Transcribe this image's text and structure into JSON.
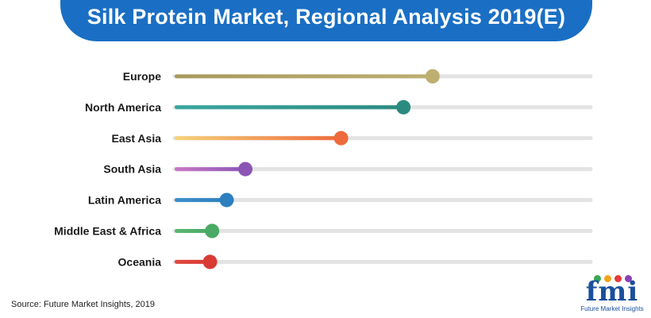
{
  "chart_data": {
    "type": "bar",
    "title": "Silk Protein Market, Regional Analysis 2019(E)",
    "categories": [
      "Europe",
      "North America",
      "East Asia",
      "South Asia",
      "Latin America",
      "Middle East & Africa",
      "Oceania"
    ],
    "values": [
      62,
      55,
      40,
      17,
      12.5,
      9,
      8.5
    ],
    "xlim": [
      0,
      100
    ],
    "grid": false,
    "colors": {
      "Europe": [
        "#a79a5e",
        "#bdaf70"
      ],
      "North America": [
        "#3aa6a0",
        "#2b8b80"
      ],
      "East Asia": [
        "#f7d27a",
        "#ee6a3c"
      ],
      "South Asia": [
        "#c978c4",
        "#8b55b5"
      ],
      "Latin America": [
        "#3c8fc8",
        "#2e7fbf"
      ],
      "Middle East & Africa": [
        "#5ab870",
        "#4aa964"
      ],
      "Oceania": [
        "#e0483e",
        "#d93a34"
      ]
    },
    "track_color": "#e3e3e3"
  },
  "source": "Source: Future Market Insights, 2019",
  "logo": {
    "text": "fmi",
    "subtitle": "Future Market Insights",
    "colors": {
      "brand": "#1a4f9c",
      "accent1": "#3aa655",
      "accent2": "#f2a31b",
      "accent3": "#e23a3a",
      "accent4": "#8a3fb5"
    }
  }
}
